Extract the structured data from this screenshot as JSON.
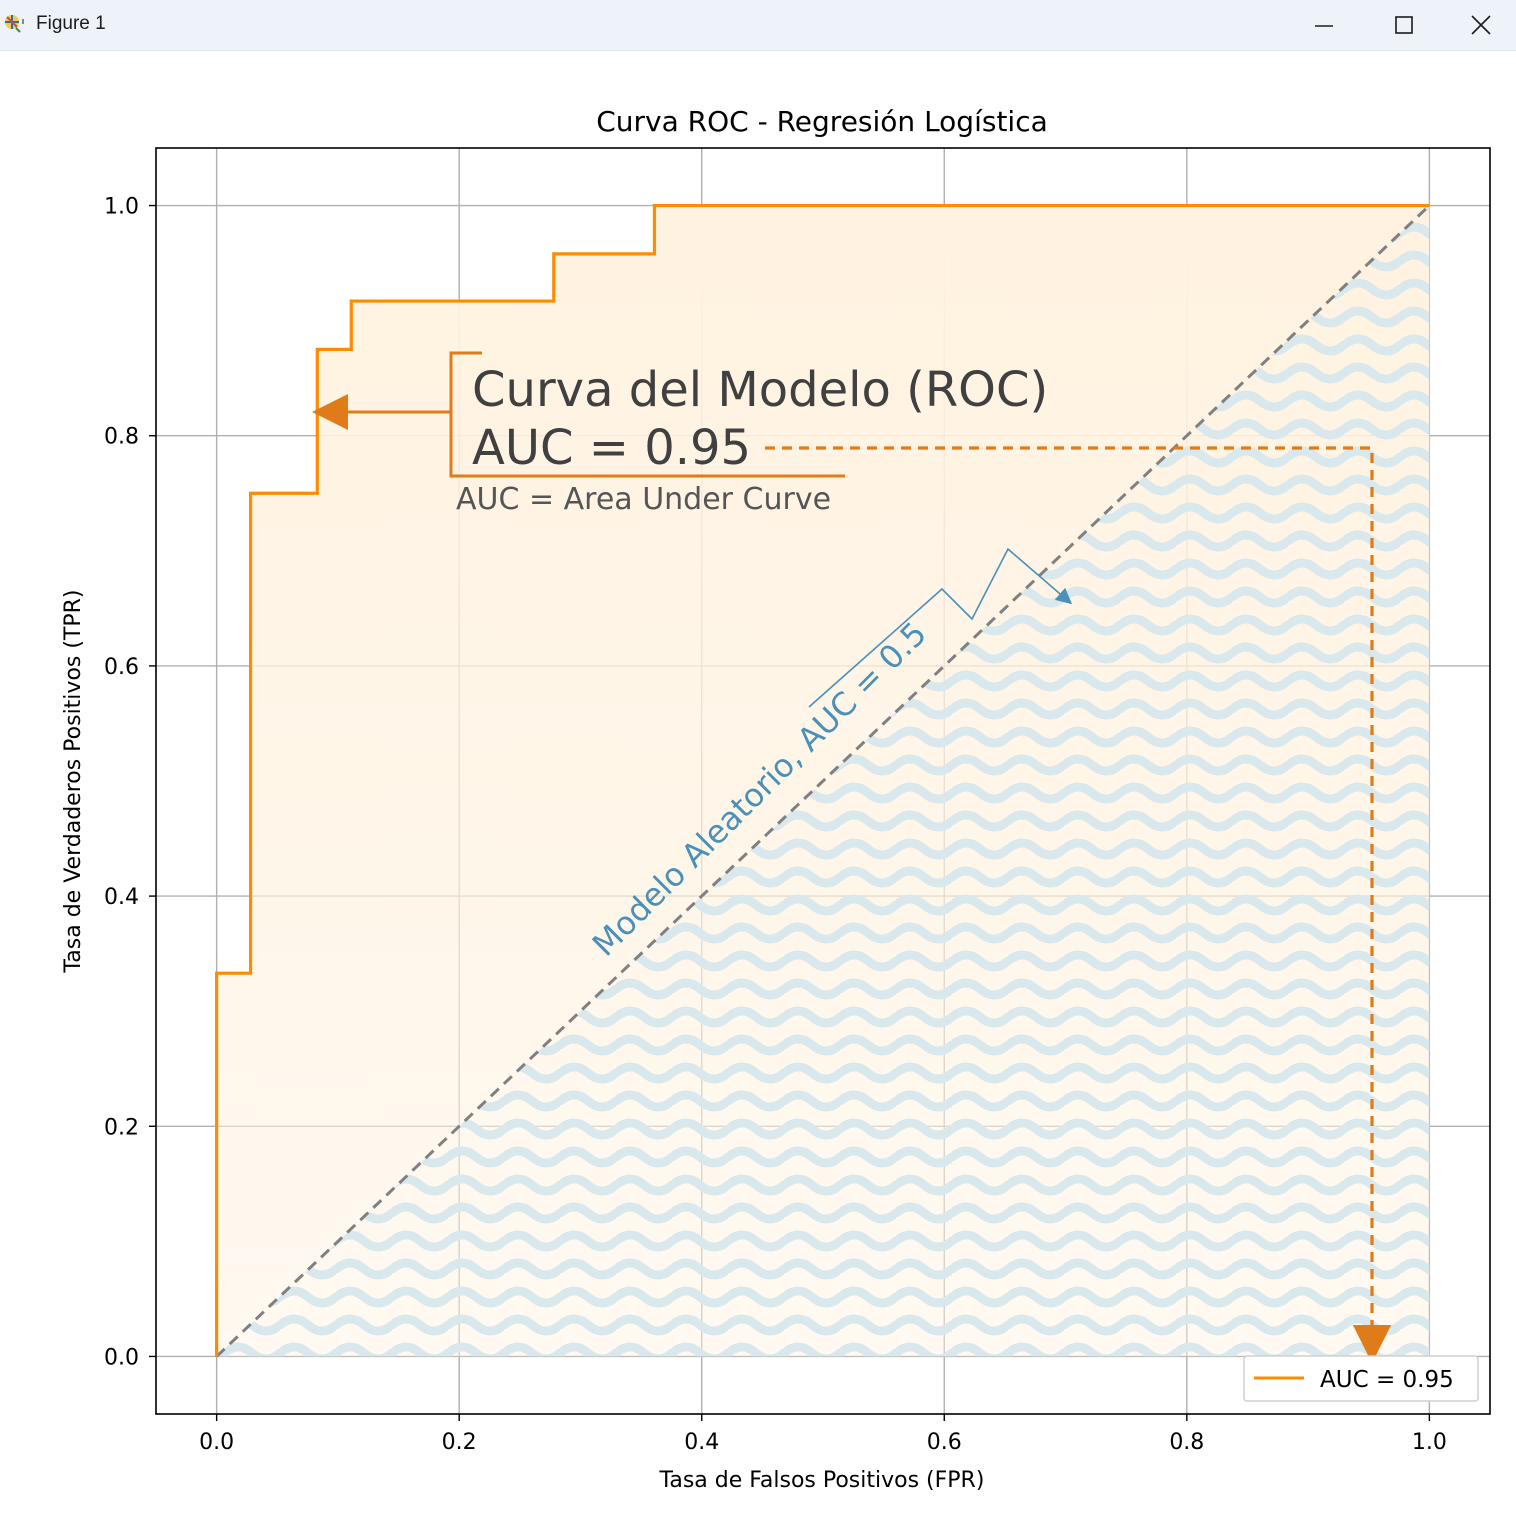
{
  "window": {
    "title": "Figure 1",
    "icon": "matplotlib-figure-icon",
    "controls": {
      "minimize_icon": "minimize-icon",
      "maximize_icon": "maximize-icon",
      "close_icon": "close-icon"
    }
  },
  "colors": {
    "roc_line": "#ff8c00",
    "roc_fill": "#fff2e0",
    "diagonal": "#808080",
    "annotation_orange": "#e07b1a",
    "annotation_blue": "#4a90b8",
    "wave_pattern": "#d9e8ec",
    "grid": "#b0b0b0",
    "annotation_text": "#404040"
  },
  "chart_data": {
    "type": "line",
    "title": "Curva ROC - Regresión Logística",
    "xlabel": "Tasa de Falsos Positivos (FPR)",
    "ylabel": "Tasa de Verdaderos Positivos (TPR)",
    "xlim": [
      -0.05,
      1.05
    ],
    "ylim": [
      -0.05,
      1.05
    ],
    "xticks": [
      0.0,
      0.2,
      0.4,
      0.6,
      0.8,
      1.0
    ],
    "yticks": [
      0.0,
      0.2,
      0.4,
      0.6,
      0.8,
      1.0
    ],
    "xtick_labels": [
      "0.0",
      "0.2",
      "0.4",
      "0.6",
      "0.8",
      "1.0"
    ],
    "ytick_labels": [
      "0.0",
      "0.2",
      "0.4",
      "0.6",
      "0.8",
      "1.0"
    ],
    "grid": true,
    "legend": {
      "location": "lower right",
      "entries": [
        "AUC = 0.95"
      ]
    },
    "series": [
      {
        "name": "AUC = 0.95",
        "style": "step",
        "fpr": [
          0.0,
          0.0,
          0.028,
          0.028,
          0.083,
          0.083,
          0.111,
          0.111,
          0.278,
          0.278,
          0.361,
          0.361,
          1.0
        ],
        "tpr": [
          0.0,
          0.333,
          0.333,
          0.75,
          0.75,
          0.875,
          0.875,
          0.917,
          0.917,
          0.958,
          0.958,
          1.0,
          1.0
        ]
      },
      {
        "style": "dashed-diagonal",
        "x": [
          0.0,
          1.0
        ],
        "y": [
          0.0,
          1.0
        ]
      }
    ],
    "annotations": {
      "model_line1": "Curva del Modelo (ROC)",
      "model_line2": "AUC = 0.95",
      "model_note": "AUC = Area Under Curve",
      "random_label": "Modelo Aleatorio, AUC = 0.5"
    }
  }
}
